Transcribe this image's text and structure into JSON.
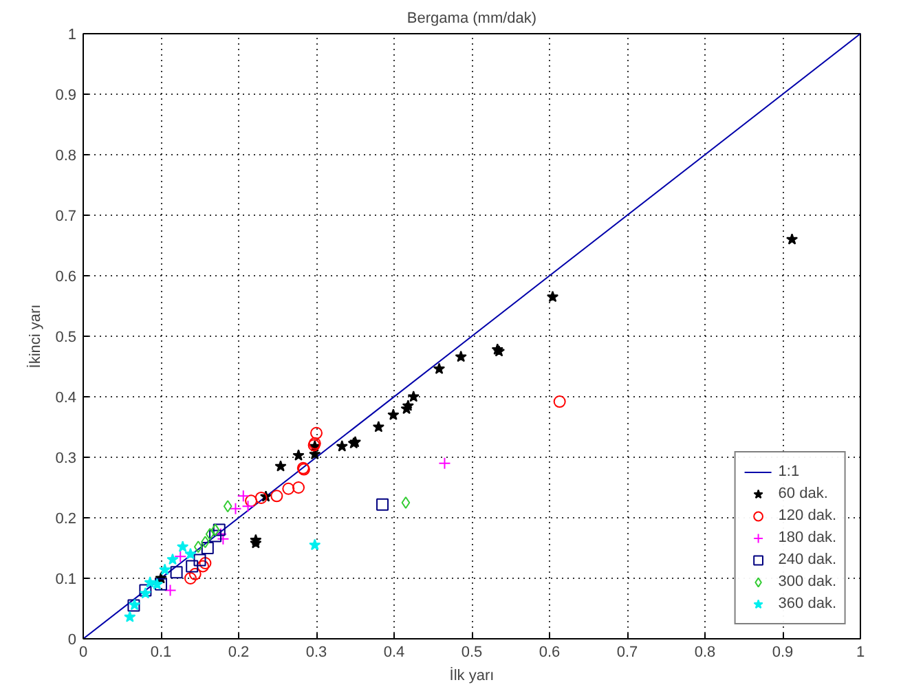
{
  "chart_data": {
    "type": "scatter",
    "title": "Bergama (mm/dak)",
    "xlabel": "İlk yarı",
    "ylabel": "İkinci yarı",
    "xlim": [
      0,
      1
    ],
    "ylim": [
      0,
      1
    ],
    "xticks": [
      0,
      0.1,
      0.2,
      0.3,
      0.4,
      0.5,
      0.6,
      0.7,
      0.8,
      0.9,
      1
    ],
    "yticks": [
      0,
      0.1,
      0.2,
      0.3,
      0.4,
      0.5,
      0.6,
      0.7,
      0.8,
      0.9,
      1
    ],
    "grid": true,
    "legend": "bottom right",
    "series": [
      {
        "name": "1:1",
        "type": "line",
        "color": "#0000aa",
        "line_style": "solid",
        "x": [
          0,
          1
        ],
        "values": [
          0,
          1
        ]
      },
      {
        "name": "60 dak.",
        "color": "#000000",
        "marker": "star",
        "x": [
          0.912,
          0.604,
          0.535,
          0.533,
          0.486,
          0.458,
          0.425,
          0.418,
          0.416,
          0.399,
          0.38,
          0.35,
          0.348,
          0.333,
          0.298,
          0.298,
          0.277,
          0.254,
          0.235,
          0.222,
          0.222,
          0.1
        ],
        "values": [
          0.66,
          0.565,
          0.475,
          0.478,
          0.466,
          0.446,
          0.4,
          0.385,
          0.38,
          0.37,
          0.35,
          0.325,
          0.323,
          0.318,
          0.318,
          0.305,
          0.303,
          0.285,
          0.235,
          0.163,
          0.158,
          0.1
        ]
      },
      {
        "name": "120 dak.",
        "color": "#ff0000",
        "marker": "circle",
        "x": [
          0.613,
          0.3,
          0.298,
          0.297,
          0.283,
          0.284,
          0.277,
          0.264,
          0.249,
          0.229,
          0.216,
          0.138,
          0.154,
          0.157,
          0.144
        ],
        "values": [
          0.392,
          0.34,
          0.323,
          0.32,
          0.282,
          0.28,
          0.25,
          0.248,
          0.236,
          0.233,
          0.228,
          0.1,
          0.12,
          0.125,
          0.107
        ]
      },
      {
        "name": "180 dak.",
        "color": "#ff00ff",
        "marker": "cross",
        "x": [
          0.465,
          0.206,
          0.196,
          0.177,
          0.18,
          0.125,
          0.212,
          0.112
        ],
        "values": [
          0.29,
          0.236,
          0.215,
          0.173,
          0.165,
          0.136,
          0.219,
          0.08
        ]
      },
      {
        "name": "240 dak.",
        "color": "#000080",
        "marker": "square",
        "x": [
          0.385,
          0.16,
          0.17,
          0.14,
          0.1,
          0.12,
          0.08,
          0.065,
          0.15,
          0.175
        ],
        "values": [
          0.222,
          0.15,
          0.17,
          0.12,
          0.09,
          0.11,
          0.08,
          0.055,
          0.13,
          0.18
        ]
      },
      {
        "name": "300 dak.",
        "color": "#33cc33",
        "marker": "diamond",
        "x": [
          0.415,
          0.186,
          0.157,
          0.163,
          0.148,
          0.17
        ],
        "values": [
          0.225,
          0.219,
          0.16,
          0.173,
          0.152,
          0.18
        ]
      },
      {
        "name": "360 dak.",
        "color": "#00eeee",
        "marker": "star",
        "x": [
          0.298,
          0.06,
          0.066,
          0.086,
          0.105,
          0.128,
          0.115,
          0.095,
          0.138,
          0.08
        ],
        "values": [
          0.155,
          0.036,
          0.056,
          0.093,
          0.114,
          0.152,
          0.131,
          0.09,
          0.14,
          0.075
        ]
      }
    ]
  }
}
